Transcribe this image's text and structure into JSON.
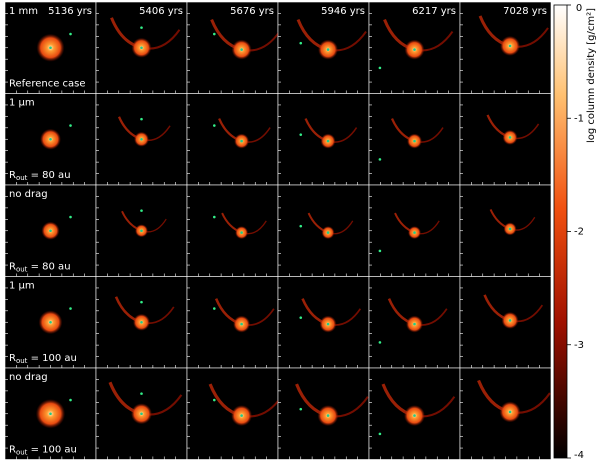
{
  "columns": [
    "5136 yrs",
    "5406 yrs",
    "5676 yrs",
    "5946 yrs",
    "6217 yrs",
    "7028 yrs"
  ],
  "rows": [
    {
      "label": "1 mm",
      "note": {
        "text": "Reference case"
      }
    },
    {
      "label": "1 μm",
      "note": {
        "symbol": "R",
        "subscript": "out",
        "text": " = 80 au"
      }
    },
    {
      "label": "no drag",
      "note": {
        "symbol": "R",
        "subscript": "out",
        "text": " = 80 au"
      }
    },
    {
      "label": "1 μm",
      "note": {
        "symbol": "R",
        "subscript": "out",
        "text": " = 100 au"
      }
    },
    {
      "label": "no drag",
      "note": {
        "symbol": "R",
        "subscript": "out",
        "text": " = 100 au"
      }
    }
  ],
  "colorbar": {
    "label": "log column density [g/cm²]",
    "lim": [
      -4,
      0
    ],
    "ticks": [
      0,
      -1,
      -2,
      -3,
      -4
    ]
  }
}
